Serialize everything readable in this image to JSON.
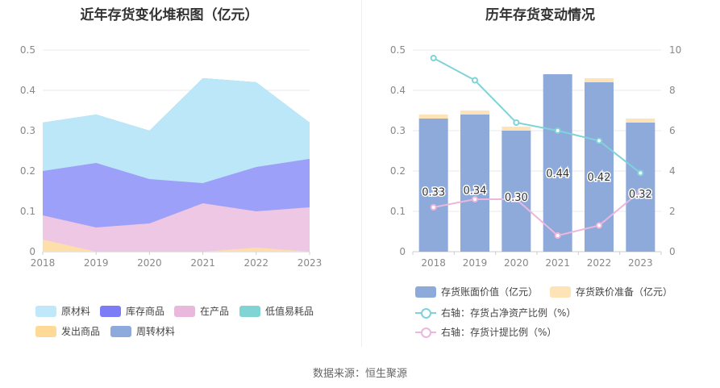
{
  "left_chart": {
    "title": "近年存货变化堆积图（亿元）",
    "legend": [
      "原材料",
      "库存商品",
      "在产品",
      "低值易耗品",
      "发出商品",
      "周转材料"
    ]
  },
  "right_chart": {
    "title": "历年存货变动情况",
    "legend": [
      "存货账面价值（亿元）",
      "存货跌价准备（亿元）",
      "右轴：存货占净资产比例（%）",
      "右轴：存货计提比例（%）"
    ]
  },
  "source": "数据来源：恒生聚源",
  "colors": {
    "raw_materials": "#bfe8fb",
    "finished_goods": "#9b9cf8",
    "wip": "#f1c9e3",
    "low_value": "#80d4d4",
    "goods_shipped": "#ffe0a8",
    "turnover": "#8ea9dc",
    "book_value": "#8eaadb",
    "impairment": "#fde3b5",
    "ratio_line": "#7fd3d8",
    "provision_line": "#ecb6dd"
  },
  "chart_data": [
    {
      "type": "area",
      "stacked": true,
      "x": [
        "2018",
        "2019",
        "2020",
        "2021",
        "2022",
        "2023"
      ],
      "ylim": [
        0,
        0.5
      ],
      "yticks": [
        "0",
        "0.1",
        "0.2",
        "0.3",
        "0.4",
        "0.5"
      ],
      "series": [
        {
          "name": "发出商品",
          "values": [
            0.03,
            0,
            0,
            0,
            0.01,
            0
          ]
        },
        {
          "name": "在产品",
          "values": [
            0.06,
            0.06,
            0.07,
            0.12,
            0.09,
            0.11
          ]
        },
        {
          "name": "库存商品",
          "values": [
            0.11,
            0.16,
            0.11,
            0.05,
            0.11,
            0.12
          ]
        },
        {
          "name": "原材料",
          "values": [
            0.12,
            0.12,
            0.12,
            0.26,
            0.21,
            0.09
          ]
        },
        {
          "name": "低值易耗品",
          "values": [
            0,
            0,
            0,
            0,
            0,
            0
          ]
        },
        {
          "name": "周转材料",
          "values": [
            0,
            0,
            0,
            0,
            0,
            0
          ]
        }
      ],
      "grid": true,
      "legend_position": "bottom"
    },
    {
      "type": "bar",
      "stacked": true,
      "categories": [
        "2018",
        "2019",
        "2020",
        "2021",
        "2022",
        "2023"
      ],
      "series": [
        {
          "name": "存货账面价值（亿元）",
          "values": [
            0.33,
            0.34,
            0.3,
            0.44,
            0.42,
            0.32
          ],
          "labels": [
            "0.33",
            "0.34",
            "0.30",
            "0.44",
            "0.42",
            "0.32"
          ]
        },
        {
          "name": "存货跌价准备（亿元）",
          "values": [
            0.01,
            0.01,
            0.01,
            0,
            0.01,
            0.01
          ]
        },
        {
          "name": "右轴：存货占净资产比例（%）",
          "type": "line",
          "axis": "right",
          "values": [
            9.6,
            8.5,
            6.4,
            6.0,
            5.5,
            3.9
          ]
        },
        {
          "name": "右轴：存货计提比例（%）",
          "type": "line",
          "axis": "right",
          "values": [
            2.2,
            2.6,
            2.6,
            0.8,
            1.3,
            3.0
          ]
        }
      ],
      "ylim": [
        0,
        0.5
      ],
      "yticks": [
        "0",
        "0.1",
        "0.2",
        "0.3",
        "0.4",
        "0.5"
      ],
      "y2lim": [
        0,
        10
      ],
      "y2ticks": [
        "0",
        "2",
        "4",
        "6",
        "8",
        "10"
      ],
      "grid": true,
      "legend_position": "bottom"
    }
  ]
}
